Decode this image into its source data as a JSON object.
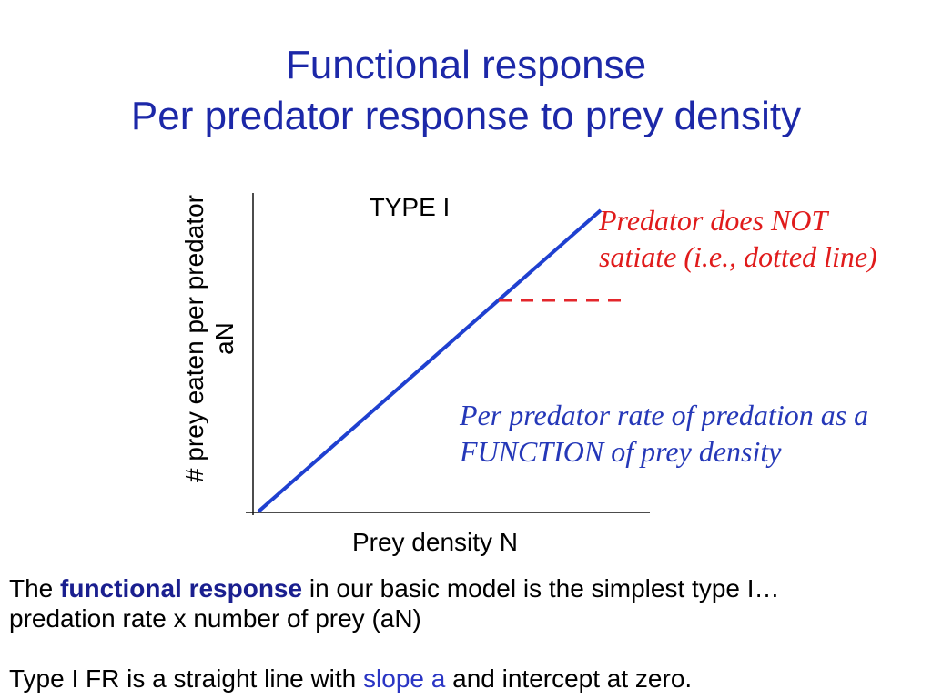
{
  "slide": {
    "title_line1": "Functional response",
    "title_line2": "Per predator response to prey density"
  },
  "graph": {
    "type_label": "TYPE I",
    "y_label_line1": "# prey eaten per predator",
    "y_label_line2": "aN",
    "x_label": "Prey density N",
    "satiation_note": [
      "Predator does NOT",
      "satiate (i.e., dotted line)"
    ],
    "definition_note": [
      "Per predator rate of predation as a",
      "FUNCTION of prey density"
    ]
  },
  "body": {
    "line1": {
      "before": "The ",
      "bold": "functional response",
      "after": " in our basic model is the simplest type I…"
    },
    "line2": "predation rate x number of prey (aN)",
    "line3": {
      "before": "Type I FR is a straight line with ",
      "highlight": "slope a",
      "after": " and intercept at zero."
    }
  },
  "colors": {
    "title_text": "#1c28a8",
    "axis": "#111111",
    "response_line": "#1f40d0",
    "satiation_line": "#e3262b",
    "satiation_note": "#e01b1b",
    "definition_note": "#2538b8",
    "emphasis_bold": "#1a1f8f",
    "slope_highlight": "#2a35c4"
  }
}
